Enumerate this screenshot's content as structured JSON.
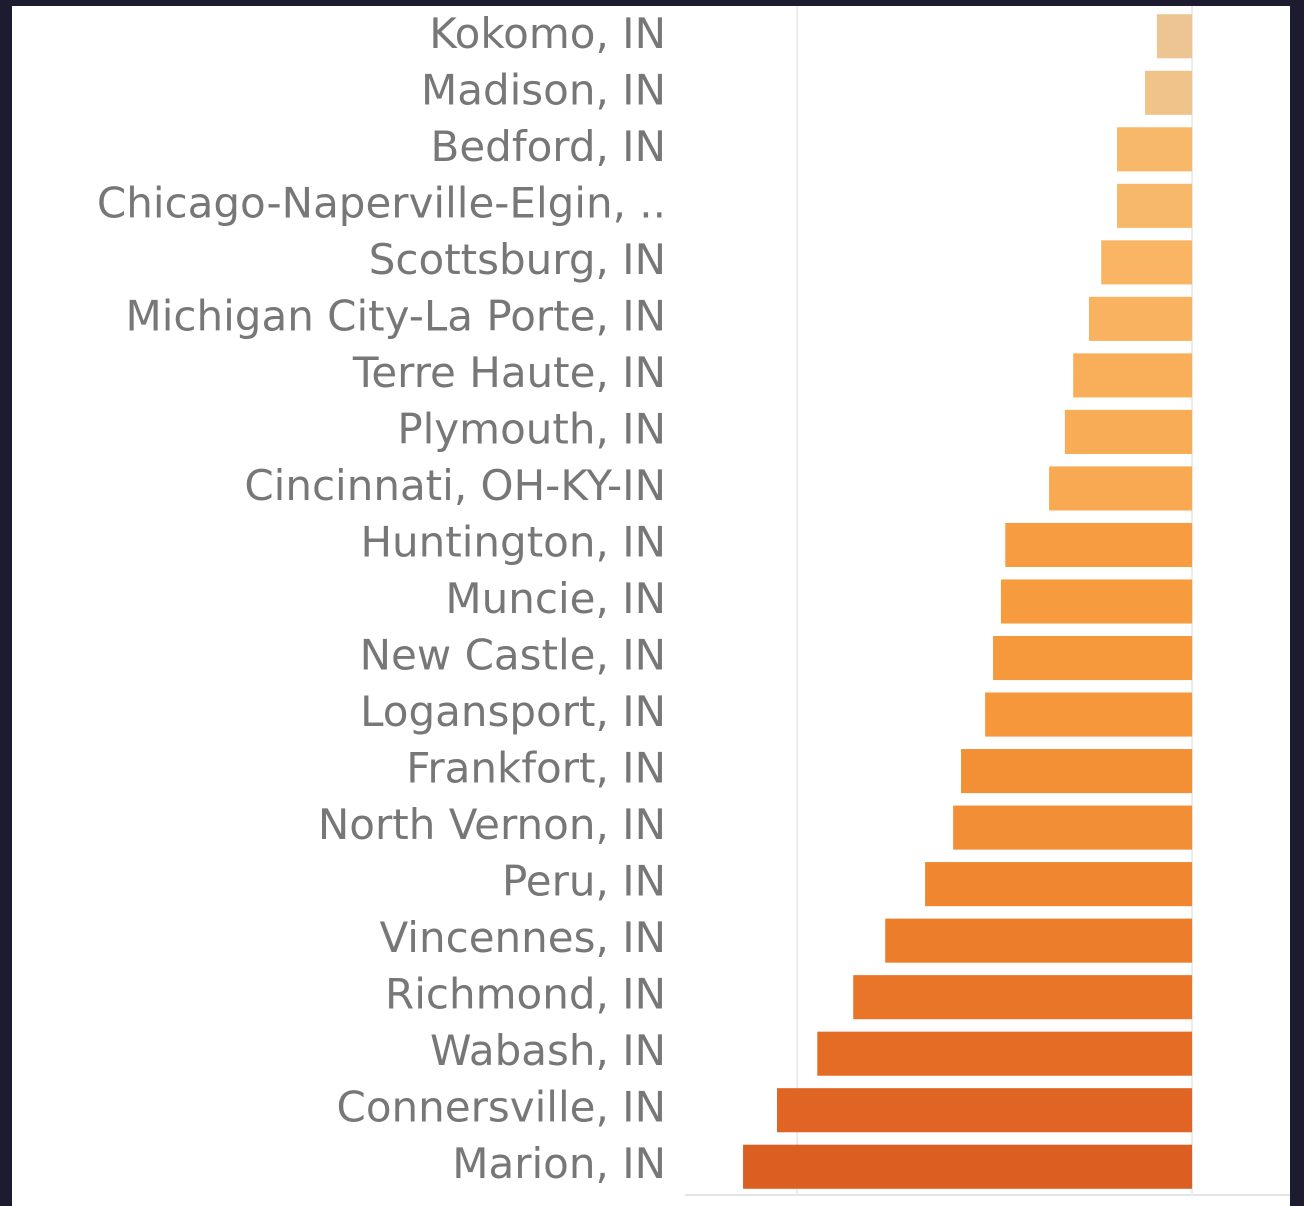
{
  "chart_data": {
    "type": "bar",
    "orientation": "horizontal",
    "categories": [
      "Kokomo, IN",
      "Madison, IN",
      "Bedford, IN",
      "Chicago-Naperville-Elgin, ..",
      "Scottsburg, IN",
      "Michigan City-La Porte, IN",
      "Terre Haute, IN",
      "Plymouth, IN",
      "Cincinnati, OH-KY-IN",
      "Huntington, IN",
      "Muncie, IN",
      "New Castle, IN",
      "Logansport, IN",
      "Frankfort, IN",
      "North Vernon, IN",
      "Peru, IN",
      "Vincennes, IN",
      "Richmond, IN",
      "Wabash, IN",
      "Connersville, IN",
      "Marion, IN"
    ],
    "values": [
      -8.9,
      -11.9,
      -19.0,
      -19.0,
      -23.0,
      -26.1,
      -30.1,
      -32.2,
      -36.2,
      -47.3,
      -48.4,
      -50.4,
      -52.4,
      -58.5,
      -60.5,
      -67.6,
      -77.7,
      -85.8,
      -94.9,
      -105.1,
      -113.7
    ],
    "colors": [
      "#ecc592",
      "#efc38a",
      "#f8b869",
      "#f8b869",
      "#f9b464",
      "#f9b260",
      "#f9ae5a",
      "#f9ac56",
      "#f9a951",
      "#f79c40",
      "#f79b3f",
      "#f6993d",
      "#f6973b",
      "#f39036",
      "#f28e35",
      "#f08730",
      "#ec7d2b",
      "#e97528",
      "#e56c25",
      "#e06423",
      "#da5f21"
    ],
    "xlim": [
      -128.4,
      24.8
    ],
    "gridlines": [
      -100,
      0
    ]
  }
}
